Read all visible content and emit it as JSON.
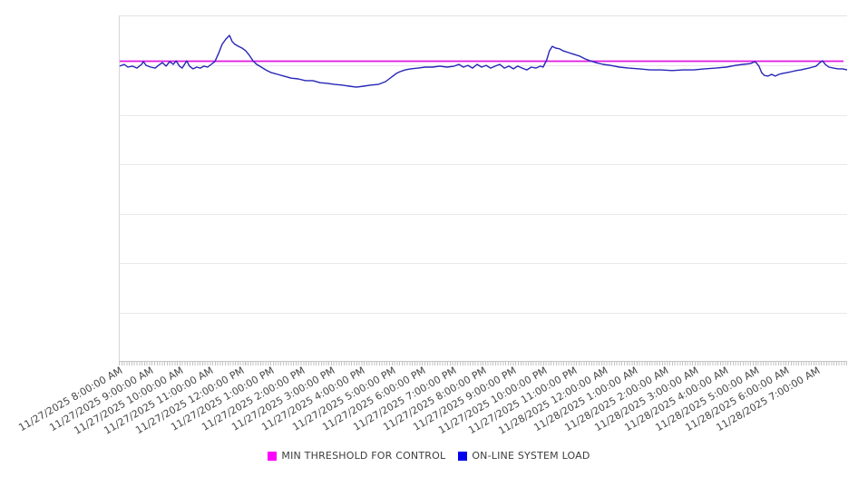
{
  "page": {
    "background": "#ffffff"
  },
  "chart_data": {
    "type": "line",
    "title": "",
    "xlabel": "",
    "ylabel": "",
    "grid": "horizontal",
    "legend_position": "bottom-center",
    "x_axis": {
      "hours_span": 24,
      "minor_ticks_per_hour": 12,
      "tick_labels": [
        "11/27/2025 8:00:00 AM",
        "11/27/2025 9:00:00 AM",
        "11/27/2025 10:00:00 AM",
        "11/27/2025 11:00:00 AM",
        "11/27/2025 12:00:00 PM",
        "11/27/2025 1:00:00 PM",
        "11/27/2025 2:00:00 PM",
        "11/27/2025 3:00:00 PM",
        "11/27/2025 4:00:00 PM",
        "11/27/2025 5:00:00 PM",
        "11/27/2025 6:00:00 PM",
        "11/27/2025 7:00:00 PM",
        "11/27/2025 8:00:00 PM",
        "11/27/2025 9:00:00 PM",
        "11/27/2025 10:00:00 PM",
        "11/27/2025 11:00:00 PM",
        "11/28/2025 12:00:00 AM",
        "11/28/2025 1:00:00 AM",
        "11/28/2025 2:00:00 AM",
        "11/28/2025 3:00:00 AM",
        "11/28/2025 4:00:00 AM",
        "11/28/2025 5:00:00 AM",
        "11/28/2025 6:00:00 AM",
        "11/28/2025 7:00:00 AM"
      ]
    },
    "y_axis": {
      "labels_visible": false,
      "ylim": [
        0,
        100
      ],
      "gridline_divisions": 7
    },
    "series": [
      {
        "name": "MIN THRESHOLD FOR CONTROL",
        "type": "threshold-hline",
        "color": "#e218e2",
        "value": 87
      },
      {
        "name": "ON-LINE SYSTEM LOAD",
        "type": "line",
        "color": "#2525b8",
        "x_unit": "hours from 11/27/2025 8:00:00 AM",
        "points": [
          [
            0,
            85.6
          ],
          [
            0.15,
            86.1
          ],
          [
            0.27,
            85.3
          ],
          [
            0.42,
            85.6
          ],
          [
            0.57,
            85.0
          ],
          [
            0.72,
            86.1
          ],
          [
            0.78,
            86.9
          ],
          [
            0.87,
            85.8
          ],
          [
            1.02,
            85.3
          ],
          [
            1.17,
            85.0
          ],
          [
            1.32,
            86.1
          ],
          [
            1.41,
            86.6
          ],
          [
            1.53,
            85.6
          ],
          [
            1.65,
            86.9
          ],
          [
            1.77,
            86.1
          ],
          [
            1.86,
            87.1
          ],
          [
            1.97,
            85.6
          ],
          [
            2.06,
            85.0
          ],
          [
            2.21,
            87.1
          ],
          [
            2.3,
            85.6
          ],
          [
            2.42,
            84.8
          ],
          [
            2.54,
            85.3
          ],
          [
            2.66,
            85.0
          ],
          [
            2.78,
            85.6
          ],
          [
            2.9,
            85.3
          ],
          [
            3.02,
            86.1
          ],
          [
            3.14,
            86.9
          ],
          [
            3.26,
            89.2
          ],
          [
            3.38,
            91.9
          ],
          [
            3.5,
            93.4
          ],
          [
            3.62,
            94.5
          ],
          [
            3.71,
            92.7
          ],
          [
            3.8,
            91.9
          ],
          [
            3.92,
            91.3
          ],
          [
            4.04,
            90.8
          ],
          [
            4.16,
            90.0
          ],
          [
            4.28,
            88.7
          ],
          [
            4.4,
            87.1
          ],
          [
            4.52,
            86.1
          ],
          [
            4.67,
            85.3
          ],
          [
            4.82,
            84.5
          ],
          [
            5.0,
            83.7
          ],
          [
            5.21,
            83.2
          ],
          [
            5.42,
            82.7
          ],
          [
            5.66,
            82.1
          ],
          [
            5.89,
            81.9
          ],
          [
            6.13,
            81.4
          ],
          [
            6.37,
            81.4
          ],
          [
            6.61,
            80.8
          ],
          [
            6.85,
            80.6
          ],
          [
            7.09,
            80.3
          ],
          [
            7.33,
            80.1
          ],
          [
            7.57,
            79.8
          ],
          [
            7.81,
            79.5
          ],
          [
            8.05,
            79.8
          ],
          [
            8.29,
            80.1
          ],
          [
            8.53,
            80.3
          ],
          [
            8.77,
            81.1
          ],
          [
            8.89,
            81.9
          ],
          [
            9.01,
            82.7
          ],
          [
            9.13,
            83.5
          ],
          [
            9.25,
            84.0
          ],
          [
            9.42,
            84.5
          ],
          [
            9.6,
            84.8
          ],
          [
            9.84,
            85.0
          ],
          [
            10.08,
            85.3
          ],
          [
            10.32,
            85.3
          ],
          [
            10.56,
            85.6
          ],
          [
            10.8,
            85.3
          ],
          [
            11.04,
            85.6
          ],
          [
            11.19,
            86.1
          ],
          [
            11.34,
            85.3
          ],
          [
            11.49,
            85.8
          ],
          [
            11.64,
            85.0
          ],
          [
            11.79,
            86.1
          ],
          [
            11.94,
            85.3
          ],
          [
            12.09,
            85.8
          ],
          [
            12.24,
            85.0
          ],
          [
            12.39,
            85.6
          ],
          [
            12.54,
            86.1
          ],
          [
            12.69,
            85.0
          ],
          [
            12.84,
            85.6
          ],
          [
            12.99,
            84.8
          ],
          [
            13.13,
            85.6
          ],
          [
            13.28,
            85.0
          ],
          [
            13.43,
            84.5
          ],
          [
            13.58,
            85.3
          ],
          [
            13.73,
            85.0
          ],
          [
            13.88,
            85.6
          ],
          [
            13.97,
            85.3
          ],
          [
            14.09,
            87.4
          ],
          [
            14.18,
            90.0
          ],
          [
            14.27,
            91.3
          ],
          [
            14.39,
            90.8
          ],
          [
            14.51,
            90.6
          ],
          [
            14.63,
            90.0
          ],
          [
            14.81,
            89.5
          ],
          [
            14.99,
            89.0
          ],
          [
            15.17,
            88.5
          ],
          [
            15.35,
            87.7
          ],
          [
            15.53,
            87.1
          ],
          [
            15.71,
            86.6
          ],
          [
            15.95,
            86.1
          ],
          [
            16.19,
            85.8
          ],
          [
            16.49,
            85.3
          ],
          [
            16.79,
            85.0
          ],
          [
            17.14,
            84.8
          ],
          [
            17.5,
            84.5
          ],
          [
            17.86,
            84.5
          ],
          [
            18.22,
            84.3
          ],
          [
            18.58,
            84.5
          ],
          [
            18.94,
            84.5
          ],
          [
            19.3,
            84.8
          ],
          [
            19.66,
            85.0
          ],
          [
            20.02,
            85.3
          ],
          [
            20.32,
            85.8
          ],
          [
            20.56,
            86.1
          ],
          [
            20.8,
            86.3
          ],
          [
            20.97,
            86.9
          ],
          [
            21.09,
            85.6
          ],
          [
            21.18,
            83.7
          ],
          [
            21.27,
            82.9
          ],
          [
            21.39,
            82.7
          ],
          [
            21.51,
            83.2
          ],
          [
            21.63,
            82.7
          ],
          [
            21.75,
            83.2
          ],
          [
            21.87,
            83.5
          ],
          [
            22.02,
            83.7
          ],
          [
            22.17,
            84.0
          ],
          [
            22.32,
            84.3
          ],
          [
            22.47,
            84.5
          ],
          [
            22.62,
            84.8
          ],
          [
            22.74,
            85.0
          ],
          [
            22.86,
            85.3
          ],
          [
            22.98,
            85.6
          ],
          [
            23.1,
            86.6
          ],
          [
            23.19,
            87.1
          ],
          [
            23.28,
            86.1
          ],
          [
            23.4,
            85.3
          ],
          [
            23.55,
            85.0
          ],
          [
            23.7,
            84.8
          ],
          [
            23.85,
            84.8
          ],
          [
            24.0,
            84.5
          ]
        ]
      }
    ]
  },
  "legend": {
    "items": [
      {
        "label": "MIN THRESHOLD FOR CONTROL",
        "color": "#ff00ff"
      },
      {
        "label": "ON-LINE SYSTEM LOAD",
        "color": "#0000ee"
      }
    ]
  }
}
